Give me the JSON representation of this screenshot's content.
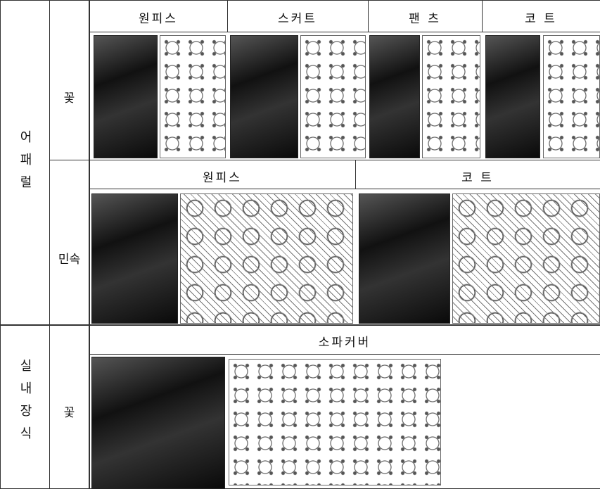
{
  "table": {
    "sections": [
      {
        "label": "어패럴",
        "rows": [
          {
            "motif": "꽃",
            "items": [
              "원피스",
              "스커트",
              "팬 츠",
              "코 트"
            ]
          },
          {
            "motif": "민속",
            "items": [
              "원피스",
              "코 트"
            ]
          }
        ]
      },
      {
        "label": "실내장식",
        "rows": [
          {
            "motif": "꽃",
            "items": [
              "소파커버"
            ]
          }
        ]
      }
    ]
  }
}
